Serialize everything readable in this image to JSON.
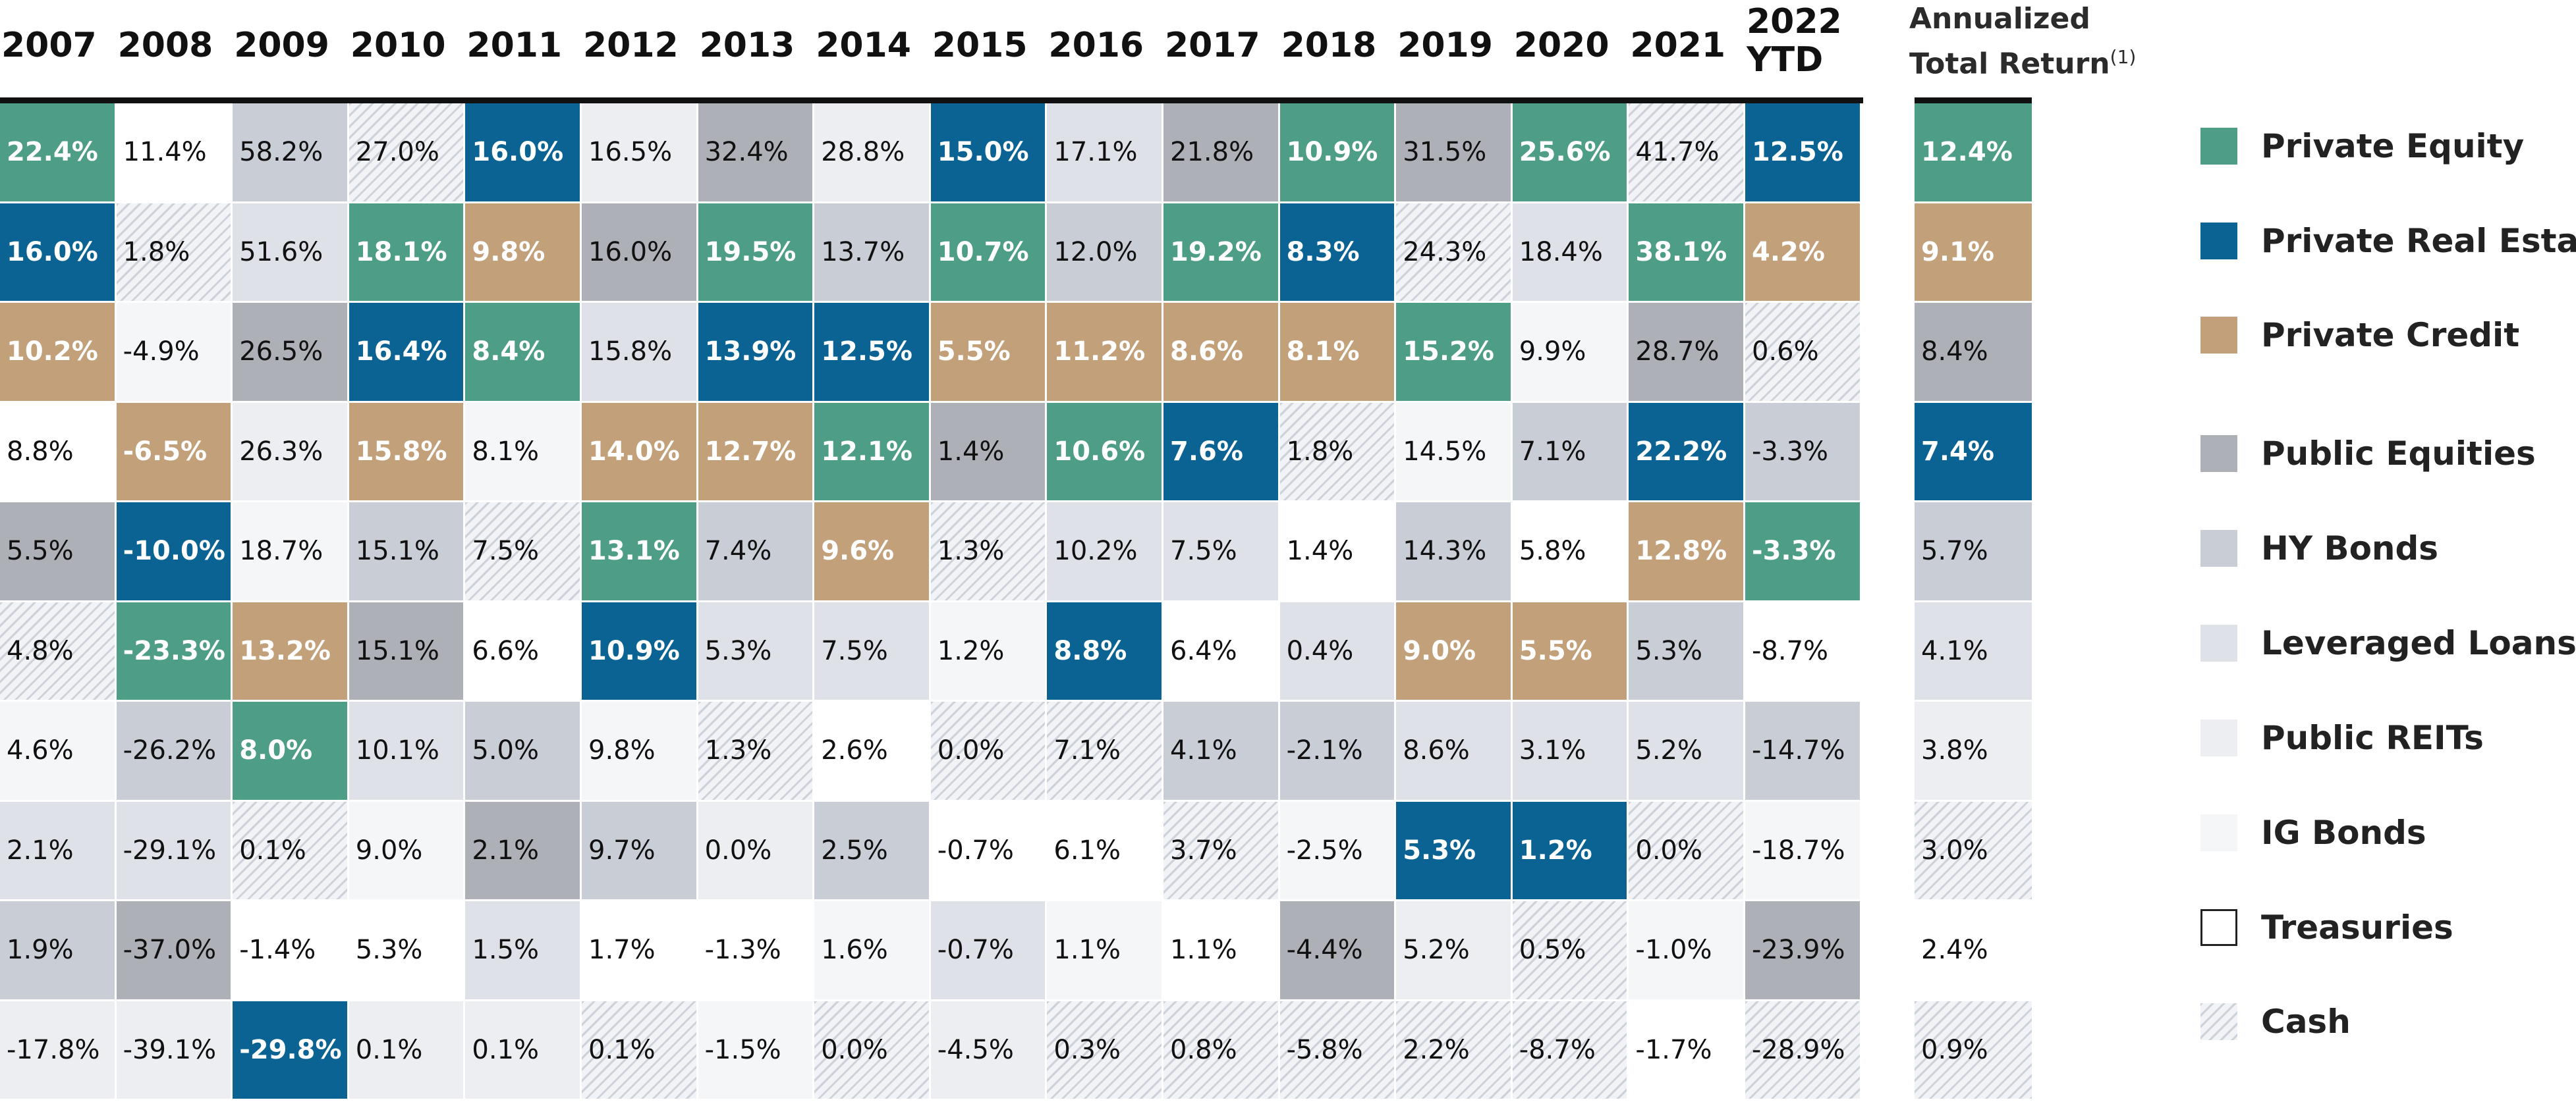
{
  "chart_data": {
    "type": "table",
    "title": "",
    "years": [
      "2007",
      "2008",
      "2009",
      "2010",
      "2011",
      "2012",
      "2013",
      "2014",
      "2015",
      "2016",
      "2017",
      "2018",
      "2019",
      "2020",
      "2021",
      "2022\nYTD"
    ],
    "annualized_header": "Annualized\nTotal Return",
    "annualized_footnote": "(1)",
    "colors": {
      "Private Equity": "#4e9d87",
      "Private Real Estate": "#0a6393",
      "Private Credit": "#c2a07a",
      "Public Equities": "#aeb0b8",
      "HY Bonds": "#c9cdd6",
      "Leveraged Loans": "#dee1e8",
      "Public REITs": "#eceef2",
      "IG Bonds": "#f5f6f8",
      "Treasuries": "#ffffff",
      "Cash": "hatch"
    },
    "columns": [
      [
        [
          "Private Equity",
          "22.4%"
        ],
        [
          "Private Real Estate",
          "16.0%"
        ],
        [
          "Private Credit",
          "10.2%"
        ],
        [
          "Treasuries",
          "8.8%"
        ],
        [
          "Public Equities",
          "5.5%"
        ],
        [
          "Cash",
          "4.8%"
        ],
        [
          "IG Bonds",
          "4.6%"
        ],
        [
          "Leveraged Loans",
          "2.1%"
        ],
        [
          "HY Bonds",
          "1.9%"
        ],
        [
          "Public REITs",
          "-17.8%"
        ]
      ],
      [
        [
          "Treasuries",
          "11.4%"
        ],
        [
          "Cash",
          "1.8%"
        ],
        [
          "IG Bonds",
          "-4.9%"
        ],
        [
          "Private Credit",
          "-6.5%"
        ],
        [
          "Private Real Estate",
          "-10.0%"
        ],
        [
          "Private Equity",
          "-23.3%"
        ],
        [
          "HY Bonds",
          "-26.2%"
        ],
        [
          "Leveraged Loans",
          "-29.1%"
        ],
        [
          "Public Equities",
          "-37.0%"
        ],
        [
          "Public REITs",
          "-39.1%"
        ]
      ],
      [
        [
          "HY Bonds",
          "58.2%"
        ],
        [
          "Leveraged Loans",
          "51.6%"
        ],
        [
          "Public Equities",
          "26.5%"
        ],
        [
          "Public REITs",
          "26.3%"
        ],
        [
          "IG Bonds",
          "18.7%"
        ],
        [
          "Private Credit",
          "13.2%"
        ],
        [
          "Private Equity",
          "8.0%"
        ],
        [
          "Cash",
          "0.1%"
        ],
        [
          "Treasuries",
          "-1.4%"
        ],
        [
          "Private Real Estate",
          "-29.8%"
        ]
      ],
      [
        [
          "Cash",
          "27.0%"
        ],
        [
          "Private Equity",
          "18.1%"
        ],
        [
          "Private Real Estate",
          "16.4%"
        ],
        [
          "Private Credit",
          "15.8%"
        ],
        [
          "HY Bonds",
          "15.1%"
        ],
        [
          "Public Equities",
          "15.1%"
        ],
        [
          "Leveraged Loans",
          "10.1%"
        ],
        [
          "IG Bonds",
          "9.0%"
        ],
        [
          "Treasuries",
          "5.3%"
        ],
        [
          "Public REITs",
          "0.1%"
        ]
      ],
      [
        [
          "Private Real Estate",
          "16.0%"
        ],
        [
          "Private Credit",
          "9.8%"
        ],
        [
          "Private Equity",
          "8.4%"
        ],
        [
          "IG Bonds",
          "8.1%"
        ],
        [
          "Cash",
          "7.5%"
        ],
        [
          "Treasuries",
          "6.6%"
        ],
        [
          "HY Bonds",
          "5.0%"
        ],
        [
          "Public Equities",
          "2.1%"
        ],
        [
          "Leveraged Loans",
          "1.5%"
        ],
        [
          "Public REITs",
          "0.1%"
        ]
      ],
      [
        [
          "Public REITs",
          "16.5%"
        ],
        [
          "Public Equities",
          "16.0%"
        ],
        [
          "Leveraged Loans",
          "15.8%"
        ],
        [
          "Private Credit",
          "14.0%"
        ],
        [
          "Private Equity",
          "13.1%"
        ],
        [
          "Private Real Estate",
          "10.9%"
        ],
        [
          "IG Bonds",
          "9.8%"
        ],
        [
          "HY Bonds",
          "9.7%"
        ],
        [
          "Treasuries",
          "1.7%"
        ],
        [
          "Cash",
          "0.1%"
        ]
      ],
      [
        [
          "Public Equities",
          "32.4%"
        ],
        [
          "Private Equity",
          "19.5%"
        ],
        [
          "Private Real Estate",
          "13.9%"
        ],
        [
          "Private Credit",
          "12.7%"
        ],
        [
          "HY Bonds",
          "7.4%"
        ],
        [
          "Leveraged Loans",
          "5.3%"
        ],
        [
          "Cash",
          "1.3%"
        ],
        [
          "Public REITs",
          "0.0%"
        ],
        [
          "Treasuries",
          "-1.3%"
        ],
        [
          "IG Bonds",
          "-1.5%"
        ]
      ],
      [
        [
          "Public REITs",
          "28.8%"
        ],
        [
          "HY Bonds",
          "13.7%"
        ],
        [
          "Private Real Estate",
          "12.5%"
        ],
        [
          "Private Equity",
          "12.1%"
        ],
        [
          "Private Credit",
          "9.6%"
        ],
        [
          "Leveraged Loans",
          "7.5%"
        ],
        [
          "Treasuries",
          "2.6%"
        ],
        [
          "HY Bonds",
          "2.5%"
        ],
        [
          "IG Bonds",
          "1.6%"
        ],
        [
          "Cash",
          "0.0%"
        ]
      ],
      [
        [
          "Private Real Estate",
          "15.0%"
        ],
        [
          "Private Equity",
          "10.7%"
        ],
        [
          "Private Credit",
          "5.5%"
        ],
        [
          "Public Equities",
          "1.4%"
        ],
        [
          "Cash",
          "1.3%"
        ],
        [
          "IG Bonds",
          "1.2%"
        ],
        [
          "Cash",
          "0.0%"
        ],
        [
          "Treasuries",
          "-0.7%"
        ],
        [
          "Leveraged Loans",
          "-0.7%"
        ],
        [
          "Public REITs",
          "-4.5%"
        ]
      ],
      [
        [
          "Leveraged Loans",
          "17.1%"
        ],
        [
          "HY Bonds",
          "12.0%"
        ],
        [
          "Private Credit",
          "11.2%"
        ],
        [
          "Private Equity",
          "10.6%"
        ],
        [
          "Leveraged Loans",
          "10.2%"
        ],
        [
          "Private Real Estate",
          "8.8%"
        ],
        [
          "Cash",
          "7.1%"
        ],
        [
          "Treasuries",
          "6.1%"
        ],
        [
          "IG Bonds",
          "1.1%"
        ],
        [
          "Cash",
          "0.3%"
        ]
      ],
      [
        [
          "Public Equities",
          "21.8%"
        ],
        [
          "Private Equity",
          "19.2%"
        ],
        [
          "Private Credit",
          "8.6%"
        ],
        [
          "Private Real Estate",
          "7.6%"
        ],
        [
          "Leveraged Loans",
          "7.5%"
        ],
        [
          "Treasuries",
          "6.4%"
        ],
        [
          "HY Bonds",
          "4.1%"
        ],
        [
          "Cash",
          "3.7%"
        ],
        [
          "Treasuries",
          "1.1%"
        ],
        [
          "Cash",
          "0.8%"
        ]
      ],
      [
        [
          "Private Equity",
          "10.9%"
        ],
        [
          "Private Real Estate",
          "8.3%"
        ],
        [
          "Private Credit",
          "8.1%"
        ],
        [
          "Cash",
          "1.8%"
        ],
        [
          "Treasuries",
          "1.4%"
        ],
        [
          "Leveraged Loans",
          "0.4%"
        ],
        [
          "HY Bonds",
          "-2.1%"
        ],
        [
          "IG Bonds",
          "-2.5%"
        ],
        [
          "Public Equities",
          "-4.4%"
        ],
        [
          "Cash",
          "-5.8%"
        ]
      ],
      [
        [
          "Public Equities",
          "31.5%"
        ],
        [
          "Cash",
          "24.3%"
        ],
        [
          "Private Equity",
          "15.2%"
        ],
        [
          "IG Bonds",
          "14.5%"
        ],
        [
          "HY Bonds",
          "14.3%"
        ],
        [
          "Private Credit",
          "9.0%"
        ],
        [
          "Leveraged Loans",
          "8.6%"
        ],
        [
          "Private Real Estate",
          "5.3%"
        ],
        [
          "Public REITs",
          "5.2%"
        ],
        [
          "Cash",
          "2.2%"
        ]
      ],
      [
        [
          "Private Equity",
          "25.6%"
        ],
        [
          "Leveraged Loans",
          "18.4%"
        ],
        [
          "IG Bonds",
          "9.9%"
        ],
        [
          "HY Bonds",
          "7.1%"
        ],
        [
          "Treasuries",
          "5.8%"
        ],
        [
          "Private Credit",
          "5.5%"
        ],
        [
          "Leveraged Loans",
          "3.1%"
        ],
        [
          "Private Real Estate",
          "1.2%"
        ],
        [
          "Cash",
          "0.5%"
        ],
        [
          "Cash",
          "-8.7%"
        ]
      ],
      [
        [
          "Cash",
          "41.7%"
        ],
        [
          "Private Equity",
          "38.1%"
        ],
        [
          "Public Equities",
          "28.7%"
        ],
        [
          "Private Real Estate",
          "22.2%"
        ],
        [
          "Private Credit",
          "12.8%"
        ],
        [
          "HY Bonds",
          "5.3%"
        ],
        [
          "Leveraged Loans",
          "5.2%"
        ],
        [
          "Cash",
          "0.0%"
        ],
        [
          "IG Bonds",
          "-1.0%"
        ],
        [
          "Treasuries",
          "-1.7%"
        ]
      ],
      [
        [
          "Private Real Estate",
          "12.5%"
        ],
        [
          "Private Credit",
          "4.2%"
        ],
        [
          "Cash",
          "0.6%"
        ],
        [
          "HY Bonds",
          "-3.3%"
        ],
        [
          "Private Equity",
          "-3.3%"
        ],
        [
          "Treasuries",
          "-8.7%"
        ],
        [
          "HY Bonds",
          "-14.7%"
        ],
        [
          "IG Bonds",
          "-18.7%"
        ],
        [
          "Public Equities",
          "-23.9%"
        ],
        [
          "Cash",
          "-28.9%"
        ]
      ]
    ],
    "annualized": [
      [
        "Private Equity",
        "12.4%"
      ],
      [
        "Private Credit",
        "9.1%"
      ],
      [
        "Public Equities",
        "8.4%"
      ],
      [
        "Private Real Estate",
        "7.4%"
      ],
      [
        "HY Bonds",
        "5.7%"
      ],
      [
        "Leveraged Loans",
        "4.1%"
      ],
      [
        "Public REITs",
        "3.8%"
      ],
      [
        "Cash",
        "3.0%"
      ],
      [
        "Treasuries",
        "2.4%"
      ],
      [
        "Cash",
        "0.9%"
      ]
    ],
    "legend": [
      "Private Equity",
      "Private Real Estate",
      "Private Credit",
      "Public Equities",
      "HY Bonds",
      "Leveraged Loans",
      "Public REITs",
      "IG Bonds",
      "Treasuries",
      "Cash"
    ]
  }
}
